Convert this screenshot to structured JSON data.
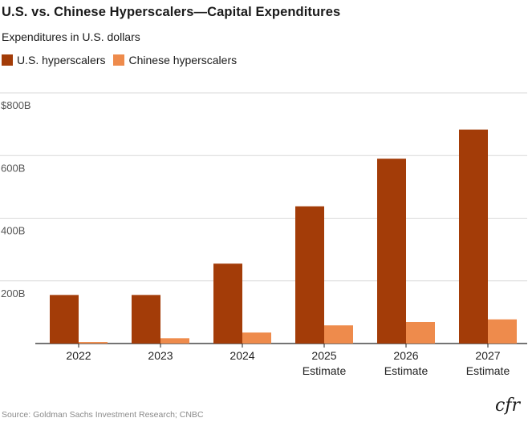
{
  "chart_data": {
    "type": "bar",
    "title": "U.S. vs. Chinese Hyperscalers—Capital Expenditures",
    "subtitle": "Expenditures in U.S. dollars",
    "categories": [
      "2022",
      "2023",
      "2024",
      "2025 Estimate",
      "2026 Estimate",
      "2027 Estimate"
    ],
    "category_lines": [
      [
        "2022"
      ],
      [
        "2023"
      ],
      [
        "2024"
      ],
      [
        "2025",
        "Estimate"
      ],
      [
        "2026",
        "Estimate"
      ],
      [
        "2027",
        "Estimate"
      ]
    ],
    "series": [
      {
        "name": "U.S. hyperscalers",
        "color": "#A33C08",
        "values": [
          155,
          155,
          255,
          438,
          590,
          683
        ]
      },
      {
        "name": "Chinese hyperscalers",
        "color": "#EE8B4C",
        "values": [
          5,
          17,
          35,
          58,
          69,
          77
        ]
      }
    ],
    "ylim": [
      0,
      800
    ],
    "yticks": [
      {
        "value": 200,
        "label": "200B"
      },
      {
        "value": 400,
        "label": "400B"
      },
      {
        "value": 600,
        "label": "600B"
      },
      {
        "value": 800,
        "label": "$800B"
      }
    ],
    "xlabel": "",
    "ylabel": "",
    "legend_position": "top-left",
    "grid": true,
    "source": "Source: Goldman Sachs Investment Research; CNBC"
  },
  "brand": {
    "logo_text": "cfr"
  }
}
